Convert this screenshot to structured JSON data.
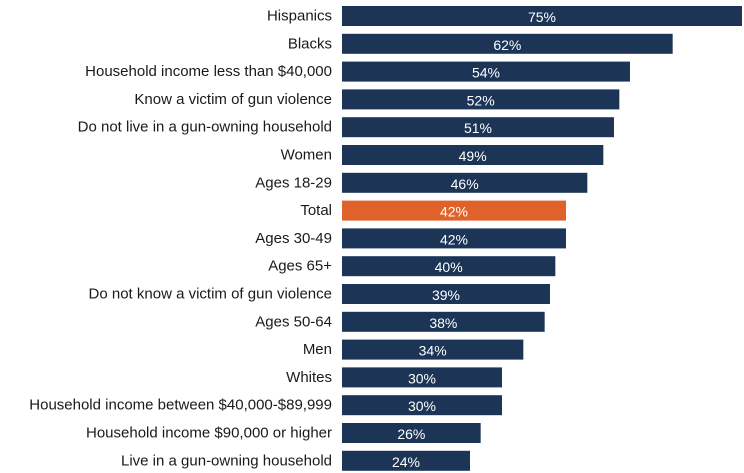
{
  "chart_data": {
    "type": "bar",
    "orientation": "horizontal",
    "categories": [
      "Hispanics",
      "Blacks",
      "Household income less than $40,000",
      "Know a victim of gun violence",
      "Do not live in a gun-owning household",
      "Women",
      "Ages 18-29",
      "Total",
      "Ages 30-49",
      "Ages 65+",
      "Do not know a victim of gun violence",
      "Ages 50-64",
      "Men",
      "Whites",
      "Household income between $40,000-$89,999",
      "Household income $90,000 or higher",
      "Live in a gun-owning household"
    ],
    "values": [
      75,
      62,
      54,
      52,
      51,
      49,
      46,
      42,
      42,
      40,
      39,
      38,
      34,
      30,
      30,
      26,
      24
    ],
    "value_labels": [
      "75%",
      "62%",
      "54%",
      "52%",
      "51%",
      "49%",
      "46%",
      "42%",
      "42%",
      "40%",
      "39%",
      "38%",
      "34%",
      "30%",
      "30%",
      "26%",
      "24%"
    ],
    "highlight_index": 7,
    "xlim": [
      0,
      75
    ],
    "grid": false,
    "legend": "none",
    "colors": {
      "bar": "#1c3557",
      "highlight": "#e0622a",
      "label": "#1a1a1a",
      "value_text": "#ffffff"
    }
  }
}
